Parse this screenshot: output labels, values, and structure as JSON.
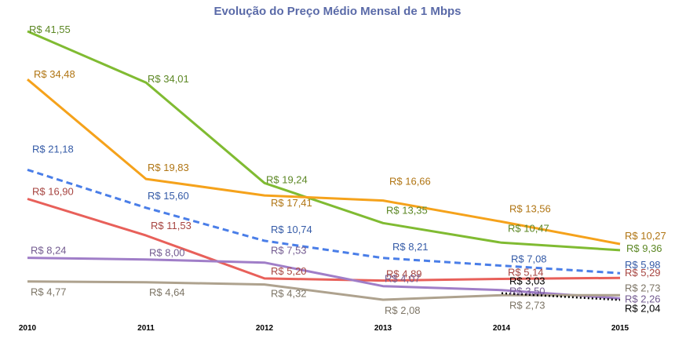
{
  "chart_data": {
    "type": "line",
    "title": "Evolução do Preço Médio Mensal de 1 Mbps",
    "x": [
      "2010",
      "2011",
      "2012",
      "2013",
      "2014",
      "2015"
    ],
    "ylim": [
      0,
      42
    ],
    "grid": false,
    "legend": "none",
    "series": [
      {
        "color": "#80bb32",
        "dash": "solid",
        "values": [
          41.55,
          34.01,
          19.24,
          13.35,
          10.47,
          9.36
        ],
        "labels": [
          "R$ 41,55",
          "R$ 34,01",
          "R$ 19,24",
          "R$ 13,35",
          "R$ 10,47",
          "R$ 9,36"
        ]
      },
      {
        "color": "#f5a21b",
        "dash": "solid",
        "values": [
          34.48,
          19.83,
          17.41,
          16.66,
          13.56,
          10.27
        ],
        "labels": [
          "R$ 34,48",
          "R$ 19,83",
          "R$ 17,41",
          "R$ 16,66",
          "R$ 13,56",
          "R$ 10,27"
        ]
      },
      {
        "color": "#4a7ee8",
        "dash": "dashed",
        "values": [
          21.18,
          15.6,
          10.74,
          8.21,
          7.08,
          5.98
        ],
        "labels": [
          "R$ 21,18",
          "R$ 15,60",
          "R$ 10,74",
          "R$ 8,21",
          "R$ 7,08",
          "R$ 5,98"
        ]
      },
      {
        "color": "#e8605a",
        "dash": "solid",
        "values": [
          16.9,
          11.53,
          5.2,
          4.89,
          5.14,
          5.29
        ],
        "labels": [
          "R$ 16,90",
          "R$ 11,53",
          "R$ 5,20",
          "R$ 4,89",
          "R$ 5,14",
          "R$ 5,29"
        ]
      },
      {
        "color": "#a07ec8",
        "dash": "solid",
        "values": [
          8.24,
          8.0,
          7.53,
          4.07,
          3.5,
          2.26
        ],
        "labels": [
          "R$ 8,24",
          "R$ 8,00",
          "R$ 7,53",
          "R$ 4,07",
          "R$ 3,50",
          "R$ 2,26"
        ]
      },
      {
        "color": "#aea28e",
        "dash": "solid",
        "values": [
          4.77,
          4.64,
          4.32,
          2.08,
          2.73,
          2.73
        ],
        "labels": [
          "R$ 4,77",
          "R$ 4,64",
          "R$ 4,32",
          "R$ 2,08",
          "R$ 2,73",
          "R$ 2,73"
        ]
      },
      {
        "color": "#000000",
        "dash": "dotted",
        "x": [
          "2014",
          "2015"
        ],
        "values": [
          3.03,
          2.04
        ],
        "labels": [
          "R$ 3,03",
          "R$ 2,04"
        ]
      }
    ]
  }
}
